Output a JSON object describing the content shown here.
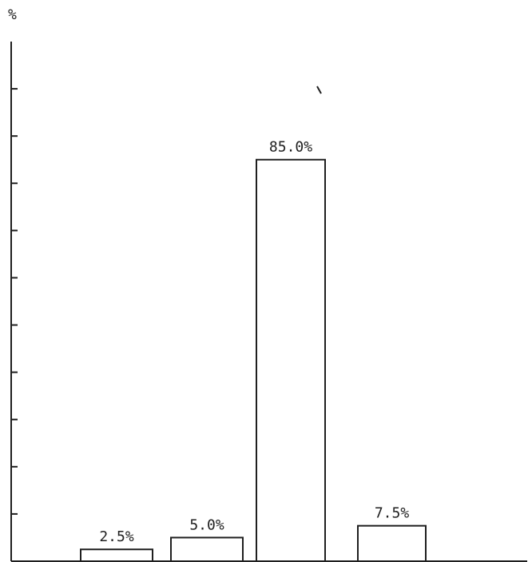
{
  "chart_data": {
    "type": "bar",
    "title": "",
    "xlabel": "",
    "ylabel": "%",
    "ylim": [
      0,
      110
    ],
    "categories": [
      "",
      "",
      "",
      ""
    ],
    "values": [
      2.5,
      5.0,
      85.0,
      7.5
    ],
    "data_labels": [
      "2.5%",
      "5.0%",
      "85.0%",
      "7.5%"
    ],
    "grid": false,
    "legend": "none",
    "bar_fill": "#ffffff",
    "bar_stroke": "#1f1f1f"
  }
}
